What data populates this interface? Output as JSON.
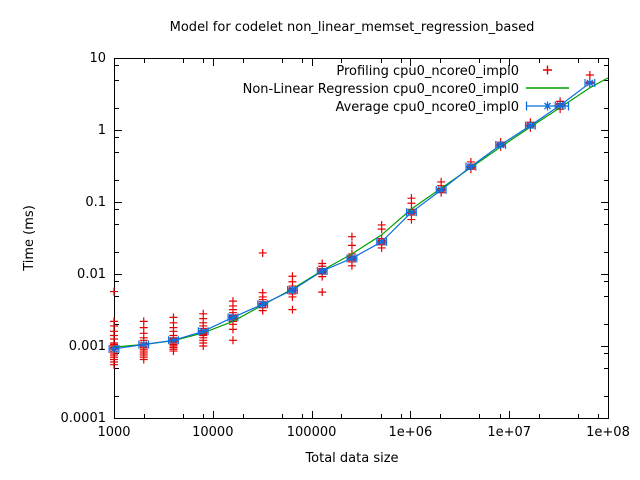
{
  "chart_data": {
    "type": "scatter",
    "title": "Model for codelet non_linear_memset_regression_based",
    "xlabel": "Total data size",
    "ylabel": "Time (ms)",
    "x_scale": "log",
    "y_scale": "log",
    "xlim": [
      1000,
      100000000
    ],
    "ylim": [
      0.0001,
      10
    ],
    "grid": false,
    "x_ticks": [
      1000,
      10000,
      100000,
      1000000,
      10000000,
      100000000
    ],
    "x_tick_labels": [
      "1000",
      "10000",
      "100000",
      "1e+06",
      "1e+07",
      "1e+08"
    ],
    "y_ticks": [
      10,
      1,
      0.1,
      0.01,
      0.001,
      0.0001
    ],
    "y_tick_labels": [
      "10",
      "1",
      "0.1",
      "0.01",
      "0.001",
      "0.0001"
    ],
    "minor_tick_multiples": [
      2,
      5,
      8
    ],
    "legend_position": "top-right-inside",
    "legend": [
      {
        "label": "Profiling cpu0_ncore0_impl0",
        "style": "points",
        "marker": "plus",
        "color": "#e60000"
      },
      {
        "label": "Non-Linear Regression cpu0_ncore0_impl0",
        "style": "line",
        "color": "#00a000"
      },
      {
        "label": "Average cpu0_ncore0_impl0",
        "style": "xerrorbar-line",
        "marker": "asterisk",
        "color": "#0d6ee0"
      }
    ],
    "series": {
      "profiling": {
        "name": "Profiling cpu0_ncore0_impl0",
        "color": "#e60000",
        "clusters": [
          {
            "size": 1000,
            "times": [
              0.0057,
              0.0022,
              0.0019,
              0.0016,
              0.0014,
              0.00125,
              0.0011,
              0.00105,
              0.001,
              0.00095,
              0.0009,
              0.00085,
              0.0008,
              0.00075,
              0.0007,
              0.00065,
              0.0006,
              0.00055
            ]
          },
          {
            "size": 2000,
            "times": [
              0.0022,
              0.0018,
              0.0015,
              0.0013,
              0.0012,
              0.0011,
              0.001,
              0.00095,
              0.0009,
              0.00085,
              0.0008,
              0.00075,
              0.0007,
              0.00065
            ]
          },
          {
            "size": 4000,
            "times": [
              0.0025,
              0.0021,
              0.0018,
              0.0016,
              0.0014,
              0.0013,
              0.00125,
              0.0012,
              0.00115,
              0.0011,
              0.00105,
              0.001,
              0.00095,
              0.0009,
              0.00085
            ]
          },
          {
            "size": 8000,
            "times": [
              0.0028,
              0.0024,
              0.0021,
              0.0019,
              0.00175,
              0.00165,
              0.0016,
              0.00155,
              0.0015,
              0.00145,
              0.0014,
              0.0013,
              0.0012,
              0.0011,
              0.001
            ]
          },
          {
            "size": 16000,
            "times": [
              0.0042,
              0.0036,
              0.0032,
              0.0029,
              0.0027,
              0.0026,
              0.00255,
              0.0025,
              0.00245,
              0.0024,
              0.0023,
              0.0022,
              0.002,
              0.0017,
              0.0012
            ]
          },
          {
            "size": 32000,
            "times": [
              0.0196,
              0.0055,
              0.0048,
              0.0044,
              0.0041,
              0.0039,
              0.00385,
              0.0038,
              0.00375,
              0.0037,
              0.0036,
              0.0034,
              0.0031
            ]
          },
          {
            "size": 64000,
            "times": [
              0.0093,
              0.0078,
              0.0068,
              0.0064,
              0.0062,
              0.0061,
              0.006,
              0.0059,
              0.0058,
              0.0056,
              0.0053,
              0.0048,
              0.0032
            ]
          },
          {
            "size": 128000,
            "times": [
              0.014,
              0.0128,
              0.0119,
              0.0114,
              0.0112,
              0.011,
              0.0109,
              0.0107,
              0.0104,
              0.01,
              0.0092,
              0.0056
            ]
          },
          {
            "size": 256000,
            "times": [
              0.033,
              0.025,
              0.019,
              0.0178,
              0.017,
              0.0168,
              0.0166,
              0.0164,
              0.016,
              0.0155,
              0.0147,
              0.013
            ]
          },
          {
            "size": 512000,
            "times": [
              0.048,
              0.042,
              0.031,
              0.0295,
              0.0287,
              0.0283,
              0.028,
              0.0277,
              0.0273,
              0.0267,
              0.0255,
              0.023
            ]
          },
          {
            "size": 1024000,
            "times": [
              0.113,
              0.096,
              0.079,
              0.075,
              0.0735,
              0.0725,
              0.072,
              0.0715,
              0.071,
              0.0695,
              0.066,
              0.057
            ]
          },
          {
            "size": 2048000,
            "times": [
              0.19,
              0.168,
              0.154,
              0.15,
              0.148,
              0.1475,
              0.147,
              0.1465,
              0.145,
              0.142,
              0.135
            ]
          },
          {
            "size": 4096000,
            "times": [
              0.36,
              0.335,
              0.318,
              0.313,
              0.311,
              0.31,
              0.309,
              0.307,
              0.304,
              0.298,
              0.285
            ]
          },
          {
            "size": 8192000,
            "times": [
              0.68,
              0.645,
              0.628,
              0.623,
              0.621,
              0.62,
              0.619,
              0.617,
              0.613,
              0.605,
              0.585
            ]
          },
          {
            "size": 16384000,
            "times": [
              1.28,
              1.21,
              1.17,
              1.16,
              1.155,
              1.15,
              1.148,
              1.145,
              1.14,
              1.12,
              1.07
            ]
          },
          {
            "size": 32768000,
            "times": [
              2.5,
              2.34,
              2.24,
              2.21,
              2.2,
              2.195,
              2.19,
              2.18,
              2.16,
              2.1,
              1.95
            ]
          },
          {
            "size": 65536000,
            "times": [
              5.8,
              4.65,
              4.52,
              4.48,
              4.45,
              4.43,
              4.4
            ]
          }
        ]
      },
      "regression": {
        "name": "Non-Linear Regression cpu0_ncore0_impl0",
        "color": "#00a000",
        "x": [
          1000,
          2000,
          4000,
          8000,
          16000,
          32000,
          64000,
          128000,
          256000,
          512000,
          1024000,
          2048000,
          4096000,
          8192000,
          16384000,
          32768000,
          65536000,
          100000000
        ],
        "y": [
          0.00097,
          0.00105,
          0.00119,
          0.00152,
          0.0022,
          0.0037,
          0.0062,
          0.0112,
          0.019,
          0.035,
          0.08,
          0.155,
          0.3,
          0.58,
          1.1,
          2.05,
          3.85,
          5.3
        ]
      },
      "average": {
        "name": "Average cpu0_ncore0_impl0",
        "color": "#0d6ee0",
        "x_error_factor": 1.12,
        "sizes": [
          1000,
          2000,
          4000,
          8000,
          16000,
          32000,
          64000,
          128000,
          256000,
          512000,
          1024000,
          2048000,
          4096000,
          8192000,
          16384000,
          32768000,
          65536000
        ],
        "times": [
          0.00091,
          0.00105,
          0.0012,
          0.0016,
          0.0025,
          0.0038,
          0.006,
          0.011,
          0.0165,
          0.028,
          0.072,
          0.147,
          0.31,
          0.62,
          1.15,
          2.2,
          4.5
        ]
      }
    }
  }
}
